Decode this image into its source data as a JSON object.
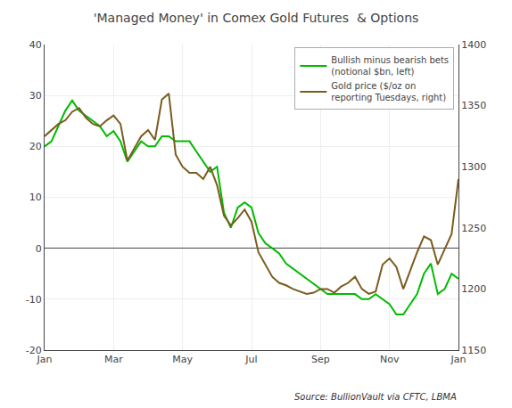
{
  "chart_data": {
    "type": "line",
    "title": "'Managed Money' in Comex Gold Futures  & Options",
    "x": [
      0,
      1,
      2,
      3,
      4,
      5,
      6,
      7,
      8,
      9,
      10,
      11,
      12,
      13,
      14,
      15,
      16,
      17,
      18,
      19,
      20,
      21,
      22,
      23,
      24,
      25,
      26,
      27,
      28,
      29,
      30,
      31,
      32,
      33,
      34,
      35,
      36,
      37,
      38,
      39,
      40,
      41,
      42,
      43,
      44,
      45,
      46,
      47,
      48,
      49,
      50,
      51,
      52,
      53,
      54,
      55,
      56,
      57,
      58,
      59,
      60
    ],
    "xlim": [
      0,
      60
    ],
    "xticks": [
      {
        "value": 0,
        "label": "Jan"
      },
      {
        "value": 10,
        "label": "Mar"
      },
      {
        "value": 20,
        "label": "May"
      },
      {
        "value": 30,
        "label": "Jul"
      },
      {
        "value": 40,
        "label": "Sep"
      },
      {
        "value": 50,
        "label": "Nov"
      },
      {
        "value": 60,
        "label": "Jan"
      }
    ],
    "ylim": [
      -20,
      40
    ],
    "yticks": [
      -20,
      -10,
      0,
      10,
      20,
      30,
      40
    ],
    "y2lim": [
      1150,
      1400
    ],
    "y2ticks": [
      1150,
      1200,
      1250,
      1300,
      1350,
      1400
    ],
    "series": [
      {
        "name": "Bullish minus bearish bets\n(notional $bn, left)",
        "color": "#00bb00",
        "values": [
          20,
          21,
          24,
          27,
          29,
          27,
          26,
          25,
          24,
          22,
          23,
          21,
          17,
          19,
          21,
          20,
          20,
          22,
          22,
          21,
          21,
          21,
          19,
          17,
          15,
          16,
          7,
          4,
          8,
          9,
          8,
          3,
          1,
          0,
          -1,
          -3,
          -4,
          -5,
          -6,
          -7,
          -8,
          -9,
          -9,
          -9,
          -9,
          -9,
          -10,
          -10,
          -9,
          -10,
          -11,
          -13,
          -13,
          -11,
          -9,
          -5,
          -3,
          -9,
          -8,
          -5,
          -6
        ]
      },
      {
        "name": "Gold price ($/oz on\nreporting Tuesdays, right)",
        "color": "#7a5c1e",
        "axis": "y2",
        "values": [
          1325,
          1330,
          1335,
          1338,
          1345,
          1348,
          1340,
          1335,
          1333,
          1338,
          1342,
          1335,
          1305,
          1315,
          1325,
          1330,
          1322,
          1355,
          1360,
          1310,
          1300,
          1295,
          1295,
          1290,
          1300,
          1285,
          1260,
          1252,
          1258,
          1265,
          1255,
          1230,
          1220,
          1210,
          1205,
          1203,
          1200,
          1198,
          1196,
          1197,
          1200,
          1200,
          1197,
          1202,
          1205,
          1210,
          1200,
          1196,
          1198,
          1220,
          1225,
          1218,
          1200,
          1215,
          1230,
          1243,
          1240,
          1220,
          1233,
          1245,
          1290
        ]
      }
    ],
    "grid": true,
    "legend": "upper right",
    "annotations": [
      "Source: BullionVault via CFTC, LBMA"
    ]
  }
}
